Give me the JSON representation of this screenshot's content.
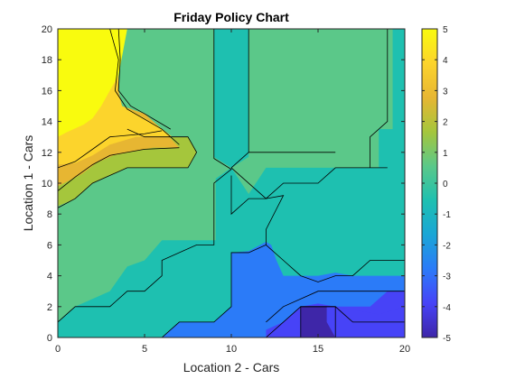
{
  "chart_data": {
    "type": "contourf",
    "title": "Friday Policy Chart",
    "xlabel": "Location 2 - Cars",
    "ylabel": "Location 1 - Cars",
    "xlim": [
      0,
      20
    ],
    "ylim": [
      0,
      20
    ],
    "xticks": [
      0,
      5,
      10,
      15,
      20
    ],
    "yticks": [
      0,
      2,
      4,
      6,
      8,
      10,
      12,
      14,
      16,
      18,
      20
    ],
    "colorbar": {
      "range": [
        -5,
        5
      ],
      "ticks": [
        5,
        4,
        3,
        2,
        1,
        0,
        -1,
        -2,
        -3,
        -4,
        -5
      ],
      "colormap": [
        "#3e26a8",
        "#4743f7",
        "#2b7bf8",
        "#1aa6d6",
        "#1ec0b0",
        "#5bc889",
        "#a5c63c",
        "#e7b632",
        "#fcd42c",
        "#f9fb0e"
      ]
    },
    "regions": [
      {
        "level": -0.5,
        "color": "#1ec0b0",
        "points": [
          [
            0,
            0
          ],
          [
            20,
            0
          ],
          [
            20,
            20
          ],
          [
            0,
            20
          ]
        ]
      },
      {
        "level": 0.5,
        "color": "#5bc889",
        "points": [
          [
            0,
            0
          ],
          [
            0,
            20
          ],
          [
            9,
            20
          ],
          [
            9,
            11.7
          ],
          [
            10,
            11
          ],
          [
            9.1,
            10.3
          ],
          [
            9.1,
            6.3
          ],
          [
            8,
            6.3
          ],
          [
            6,
            6.3
          ],
          [
            5,
            5
          ],
          [
            4,
            4.6
          ],
          [
            3,
            3
          ],
          [
            1,
            2
          ],
          [
            0,
            1
          ]
        ]
      },
      {
        "level": 0.5,
        "color": "#5bc889",
        "points": [
          [
            11,
            20
          ],
          [
            19.3,
            20
          ],
          [
            19.3,
            13.5
          ],
          [
            18.5,
            13.5
          ],
          [
            18.5,
            11
          ],
          [
            18,
            11
          ],
          [
            18,
            11
          ],
          [
            17,
            11
          ],
          [
            15,
            11
          ],
          [
            13,
            11
          ],
          [
            12,
            11
          ],
          [
            11,
            9.3
          ],
          [
            10,
            11
          ],
          [
            11,
            11.7
          ],
          [
            11,
            20
          ]
        ]
      },
      {
        "level": 1.5,
        "color": "#a5c63c",
        "points": [
          [
            0,
            8.5
          ],
          [
            0,
            13
          ],
          [
            5,
            13
          ],
          [
            7.5,
            13
          ],
          [
            8,
            12
          ],
          [
            7.5,
            11
          ],
          [
            4,
            11
          ],
          [
            2,
            10
          ],
          [
            1,
            9
          ],
          [
            0,
            8.5
          ]
        ]
      },
      {
        "level": 2.5,
        "color": "#e7b632",
        "points": [
          [
            0,
            9.8
          ],
          [
            0,
            20
          ],
          [
            3,
            20
          ],
          [
            3.5,
            18
          ],
          [
            3.5,
            16
          ],
          [
            3.7,
            15
          ],
          [
            5,
            14.5
          ],
          [
            6,
            13.5
          ],
          [
            7,
            12.3
          ],
          [
            5.5,
            12.3
          ],
          [
            3.2,
            11.8
          ],
          [
            2.2,
            11.3
          ],
          [
            1.4,
            10.6
          ],
          [
            0.7,
            10.2
          ],
          [
            0,
            9.8
          ]
        ]
      },
      {
        "level": 3.5,
        "color": "#fcd42c",
        "points": [
          [
            0,
            11.2
          ],
          [
            0,
            20
          ],
          [
            3.3,
            20
          ],
          [
            3.6,
            18
          ],
          [
            3.4,
            16
          ],
          [
            3.7,
            15
          ],
          [
            4.4,
            14.6
          ],
          [
            5.8,
            13.7
          ],
          [
            6.6,
            13
          ],
          [
            4.5,
            13
          ],
          [
            3,
            12.5
          ],
          [
            2,
            11.8
          ],
          [
            1,
            11.3
          ],
          [
            0,
            11.2
          ]
        ]
      },
      {
        "level": 4.5,
        "color": "#f9fb0e",
        "points": [
          [
            0,
            13
          ],
          [
            0,
            20
          ],
          [
            4,
            20
          ],
          [
            3.5,
            17
          ],
          [
            3,
            16
          ],
          [
            2.5,
            15
          ],
          [
            2,
            14.2
          ],
          [
            1.5,
            13.8
          ],
          [
            0.5,
            13.3
          ],
          [
            0,
            13
          ]
        ]
      },
      {
        "level": -1.5,
        "color": "#2b7bf8",
        "points": [
          [
            6,
            0
          ],
          [
            20,
            0
          ],
          [
            20,
            4
          ],
          [
            19,
            4
          ],
          [
            17,
            4
          ],
          [
            16,
            4.2
          ],
          [
            15,
            4
          ],
          [
            14,
            4
          ],
          [
            13,
            4
          ],
          [
            12.6,
            5
          ],
          [
            12.3,
            6
          ],
          [
            12,
            6.2
          ],
          [
            11,
            5.6
          ],
          [
            10,
            5.5
          ],
          [
            10,
            2
          ],
          [
            9,
            1
          ],
          [
            7,
            1
          ],
          [
            6,
            0
          ]
        ]
      },
      {
        "level": -2.5,
        "color": "#4743f7",
        "points": [
          [
            12,
            0
          ],
          [
            20,
            0
          ],
          [
            20,
            3
          ],
          [
            19,
            3
          ],
          [
            18,
            2
          ],
          [
            17,
            2
          ],
          [
            16,
            2
          ],
          [
            15,
            2.2
          ],
          [
            14,
            2
          ],
          [
            13,
            1
          ],
          [
            12,
            0.5
          ],
          [
            12,
            0
          ]
        ]
      },
      {
        "level": -3.5,
        "color": "#4743f7",
        "points": [
          [
            12,
            0
          ],
          [
            20,
            0
          ],
          [
            20,
            2
          ],
          [
            18.5,
            1.5
          ],
          [
            16,
            2
          ],
          [
            14,
            2
          ],
          [
            13,
            1
          ],
          [
            12,
            0
          ]
        ]
      },
      {
        "level": -4.5,
        "color": "#3e26a8",
        "points": [
          [
            14,
            0
          ],
          [
            16,
            0
          ],
          [
            15.5,
            1
          ],
          [
            15.5,
            2
          ],
          [
            14,
            2
          ],
          [
            14,
            0
          ]
        ]
      }
    ],
    "contour_lines": [
      [
        [
          0,
          1
        ],
        [
          1,
          2
        ],
        [
          3,
          2
        ],
        [
          4,
          3
        ],
        [
          5,
          3
        ],
        [
          6,
          4
        ],
        [
          6,
          5
        ],
        [
          8,
          6
        ],
        [
          9,
          6
        ],
        [
          9,
          10
        ],
        [
          10,
          10.9
        ],
        [
          9,
          11.6
        ],
        [
          9,
          20
        ]
      ],
      [
        [
          0,
          8.4
        ],
        [
          1,
          9
        ],
        [
          2,
          10
        ],
        [
          4,
          11
        ],
        [
          7.5,
          11
        ],
        [
          8,
          12
        ],
        [
          7.5,
          13
        ],
        [
          5,
          13
        ],
        [
          4,
          13.5
        ]
      ],
      [
        [
          0,
          9.5
        ],
        [
          1,
          10.4
        ],
        [
          2,
          11.2
        ],
        [
          3,
          11.8
        ],
        [
          5,
          12.2
        ],
        [
          7,
          12.3
        ]
      ],
      [
        [
          0,
          11
        ],
        [
          1,
          11.4
        ],
        [
          2,
          12.2
        ],
        [
          3,
          13
        ],
        [
          5,
          13.2
        ],
        [
          6,
          13.4
        ]
      ],
      [
        [
          10,
          11
        ],
        [
          11,
          12
        ],
        [
          11,
          20
        ]
      ],
      [
        [
          11,
          12
        ],
        [
          16,
          12
        ]
      ],
      [
        [
          10,
          11
        ],
        [
          12,
          9
        ],
        [
          13,
          10
        ],
        [
          15,
          10
        ],
        [
          16,
          11
        ],
        [
          18,
          11
        ],
        [
          18.5,
          11
        ],
        [
          19,
          11
        ]
      ],
      [
        [
          18,
          11
        ],
        [
          18,
          13
        ],
        [
          19,
          14
        ],
        [
          19,
          20
        ]
      ],
      [
        [
          10,
          10.5
        ],
        [
          10,
          8
        ],
        [
          11,
          9
        ],
        [
          12,
          9
        ],
        [
          13,
          9.2
        ],
        [
          12,
          7
        ],
        [
          12,
          6
        ],
        [
          11,
          5.5
        ],
        [
          10,
          5.5
        ],
        [
          10,
          2
        ],
        [
          9,
          1
        ],
        [
          7,
          1
        ],
        [
          6,
          0
        ]
      ],
      [
        [
          12,
          6
        ],
        [
          13,
          5
        ],
        [
          14,
          4
        ],
        [
          15,
          3.6
        ],
        [
          16,
          4
        ],
        [
          17,
          4
        ],
        [
          18,
          5
        ],
        [
          19,
          5
        ],
        [
          20,
          5
        ]
      ],
      [
        [
          12,
          1
        ],
        [
          13,
          2
        ],
        [
          15,
          3
        ],
        [
          16,
          3
        ],
        [
          17,
          3
        ],
        [
          18,
          3
        ],
        [
          20,
          3
        ]
      ],
      [
        [
          12,
          0
        ],
        [
          13,
          1
        ],
        [
          14,
          2
        ],
        [
          16,
          2
        ],
        [
          17,
          1
        ],
        [
          19,
          1
        ],
        [
          20,
          1
        ]
      ],
      [
        [
          14,
          0
        ],
        [
          14,
          2
        ],
        [
          16,
          2
        ],
        [
          16,
          0
        ]
      ],
      [
        [
          3,
          20
        ],
        [
          3.5,
          18
        ],
        [
          3.3,
          16
        ],
        [
          4,
          14.8
        ],
        [
          6,
          13.5
        ],
        [
          7,
          12.5
        ]
      ],
      [
        [
          3.5,
          20
        ],
        [
          3.6,
          18
        ],
        [
          3.5,
          16
        ],
        [
          4.2,
          15
        ],
        [
          5,
          14.5
        ],
        [
          6.5,
          13.5
        ]
      ]
    ]
  }
}
